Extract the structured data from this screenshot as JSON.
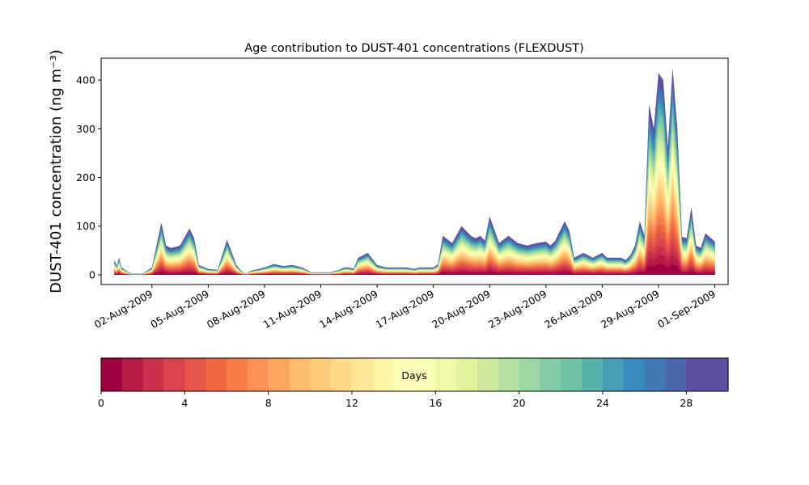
{
  "chart_data": {
    "type": "area",
    "title": "Age contribution to DUST-401 concentrations (FLEXDUST)",
    "ylabel": "DUST-401 concentration (ng m⁻³)",
    "xlabel": "",
    "ylim": [
      -20,
      445
    ],
    "xlim": [
      "2009-07-30T07:00",
      "2009-09-01T17:00"
    ],
    "yticks": [
      0,
      100,
      200,
      300,
      400
    ],
    "xticks": [
      {
        "date": "2009-08-02",
        "label": "02-Aug-2009"
      },
      {
        "date": "2009-08-05",
        "label": "05-Aug-2009"
      },
      {
        "date": "2009-08-08",
        "label": "08-Aug-2009"
      },
      {
        "date": "2009-08-11",
        "label": "11-Aug-2009"
      },
      {
        "date": "2009-08-14",
        "label": "14-Aug-2009"
      },
      {
        "date": "2009-08-17",
        "label": "17-Aug-2009"
      },
      {
        "date": "2009-08-20",
        "label": "20-Aug-2009"
      },
      {
        "date": "2009-08-23",
        "label": "23-Aug-2009"
      },
      {
        "date": "2009-08-26",
        "label": "26-Aug-2009"
      },
      {
        "date": "2009-08-29",
        "label": "29-Aug-2009"
      },
      {
        "date": "2009-09-01",
        "label": "01-Sep-2009"
      }
    ],
    "total": {
      "x": [
        "2009-07-31T00:00",
        "2009-07-31T03:00",
        "2009-07-31T06:00",
        "2009-07-31T09:00",
        "2009-07-31T12:00",
        "2009-07-31T18:00",
        "2009-08-01T00:00",
        "2009-08-01T12:00",
        "2009-08-02T00:00",
        "2009-08-02T12:00",
        "2009-08-02T18:00",
        "2009-08-03T00:00",
        "2009-08-03T06:00",
        "2009-08-03T12:00",
        "2009-08-04T00:00",
        "2009-08-04T06:00",
        "2009-08-04T12:00",
        "2009-08-05T00:00",
        "2009-08-05T12:00",
        "2009-08-06T00:00",
        "2009-08-06T12:00",
        "2009-08-06T18:00",
        "2009-08-07T00:00",
        "2009-08-07T06:00",
        "2009-08-07T12:00",
        "2009-08-08T00:00",
        "2009-08-08T12:00",
        "2009-08-09T00:00",
        "2009-08-09T12:00",
        "2009-08-10T00:00",
        "2009-08-10T12:00",
        "2009-08-11T00:00",
        "2009-08-11T12:00",
        "2009-08-12T00:00",
        "2009-08-12T06:00",
        "2009-08-12T12:00",
        "2009-08-12T18:00",
        "2009-08-13T00:00",
        "2009-08-13T12:00",
        "2009-08-14T00:00",
        "2009-08-14T12:00",
        "2009-08-15T00:00",
        "2009-08-15T12:00",
        "2009-08-16T00:00",
        "2009-08-16T06:00",
        "2009-08-16T12:00",
        "2009-08-17T00:00",
        "2009-08-17T06:00",
        "2009-08-17T12:00",
        "2009-08-18T00:00",
        "2009-08-18T12:00",
        "2009-08-19T00:00",
        "2009-08-19T06:00",
        "2009-08-19T12:00",
        "2009-08-19T18:00",
        "2009-08-20T00:00",
        "2009-08-20T12:00",
        "2009-08-21T00:00",
        "2009-08-21T12:00",
        "2009-08-22T00:00",
        "2009-08-22T12:00",
        "2009-08-23T00:00",
        "2009-08-23T06:00",
        "2009-08-23T12:00",
        "2009-08-24T00:00",
        "2009-08-24T06:00",
        "2009-08-24T12:00",
        "2009-08-25T00:00",
        "2009-08-25T12:00",
        "2009-08-26T00:00",
        "2009-08-26T06:00",
        "2009-08-26T12:00",
        "2009-08-27T00:00",
        "2009-08-27T06:00",
        "2009-08-27T12:00",
        "2009-08-27T18:00",
        "2009-08-28T00:00",
        "2009-08-28T06:00",
        "2009-08-28T12:00",
        "2009-08-28T18:00",
        "2009-08-29T00:00",
        "2009-08-29T06:00",
        "2009-08-29T12:00",
        "2009-08-29T18:00",
        "2009-08-30T00:00",
        "2009-08-30T06:00",
        "2009-08-30T12:00",
        "2009-08-30T18:00",
        "2009-08-31T00:00",
        "2009-08-31T06:00",
        "2009-08-31T12:00",
        "2009-09-01T00:00"
      ],
      "y": [
        30,
        18,
        35,
        15,
        12,
        5,
        2,
        2,
        15,
        107,
        60,
        55,
        57,
        60,
        95,
        75,
        20,
        12,
        10,
        72,
        20,
        8,
        2,
        8,
        10,
        15,
        22,
        18,
        20,
        15,
        5,
        5,
        5,
        10,
        15,
        15,
        12,
        35,
        45,
        20,
        15,
        15,
        15,
        12,
        15,
        15,
        15,
        22,
        80,
        65,
        100,
        80,
        75,
        80,
        70,
        120,
        65,
        80,
        65,
        60,
        65,
        68,
        60,
        70,
        110,
        90,
        35,
        45,
        35,
        45,
        35,
        35,
        35,
        30,
        40,
        60,
        110,
        80,
        350,
        300,
        415,
        400,
        260,
        425,
        300,
        78,
        75,
        138,
        60,
        55,
        85,
        68
      ]
    },
    "colorbar": {
      "label": "Days",
      "range": [
        0,
        30
      ],
      "ticks": [
        0,
        4,
        8,
        12,
        16,
        20,
        24,
        28
      ],
      "colors": [
        "#9e0142",
        "#b41b47",
        "#c9314c",
        "#d8434e",
        "#e45649",
        "#ee6844",
        "#f67d4a",
        "#f99355",
        "#fca761",
        "#fdbb6c",
        "#fdca79",
        "#fed987",
        "#fee796",
        "#fff2a9",
        "#fffcba",
        "#f8fcb4",
        "#eff8a6",
        "#e0f39a",
        "#cbea9d",
        "#b3e0a2",
        "#9dd7a4",
        "#83cda5",
        "#6fc3a5",
        "#58b2aa",
        "#469db4",
        "#3a89bf",
        "#3f79b6",
        "#4c67ae",
        "#5e4fa2",
        "#5e4fa2"
      ]
    }
  }
}
